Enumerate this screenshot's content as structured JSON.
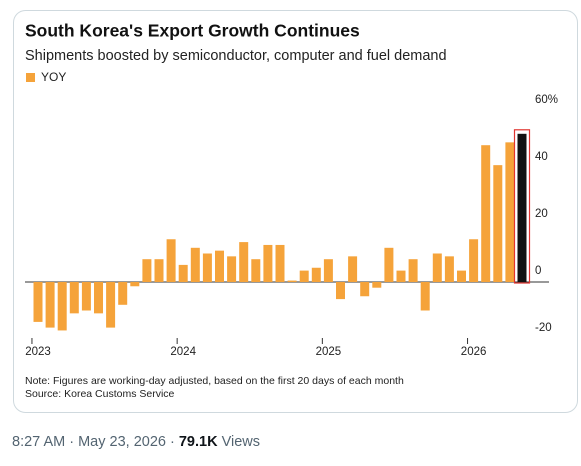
{
  "chart_data": {
    "type": "bar",
    "title": "South Korea's Export Growth Continues",
    "subtitle": "Shipments boosted by semiconductor, computer and fuel demand",
    "series": [
      {
        "name": "YOY",
        "color": "#f5a33a",
        "values": [
          -14,
          -16,
          -17,
          -11,
          -10,
          -11,
          -16,
          -8,
          -1.5,
          8,
          8,
          15,
          6,
          12,
          10,
          11,
          9,
          14,
          8,
          13,
          13,
          0.5,
          4,
          5,
          8,
          -6,
          9,
          -5,
          -2,
          12,
          4,
          8,
          -10,
          10,
          9,
          4,
          15,
          48,
          41,
          49,
          52
        ]
      }
    ],
    "highlight_last_color": "#111111",
    "highlight_last_outline": "#e0342f",
    "categories": [
      "2023",
      null,
      null,
      null,
      null,
      null,
      null,
      null,
      null,
      null,
      null,
      null,
      "2024",
      null,
      null,
      null,
      null,
      null,
      null,
      null,
      null,
      null,
      null,
      null,
      "2025",
      null,
      null,
      null,
      null,
      null,
      null,
      null,
      null,
      null,
      null,
      null,
      "2026",
      null,
      null,
      null,
      null
    ],
    "ylim": [
      -25,
      62
    ],
    "yticks": [
      {
        "value": 60,
        "label": "60%"
      },
      40,
      20,
      0,
      -20
    ],
    "grid": false,
    "notes": [
      "Note: Figures are working-day adjusted, based on the first 20 days of each month",
      "Source: Korea Customs Service"
    ]
  },
  "footer": {
    "time": "8:27 AM",
    "date": "May 23, 2026",
    "views": "79.1K",
    "views_label": "Views"
  }
}
